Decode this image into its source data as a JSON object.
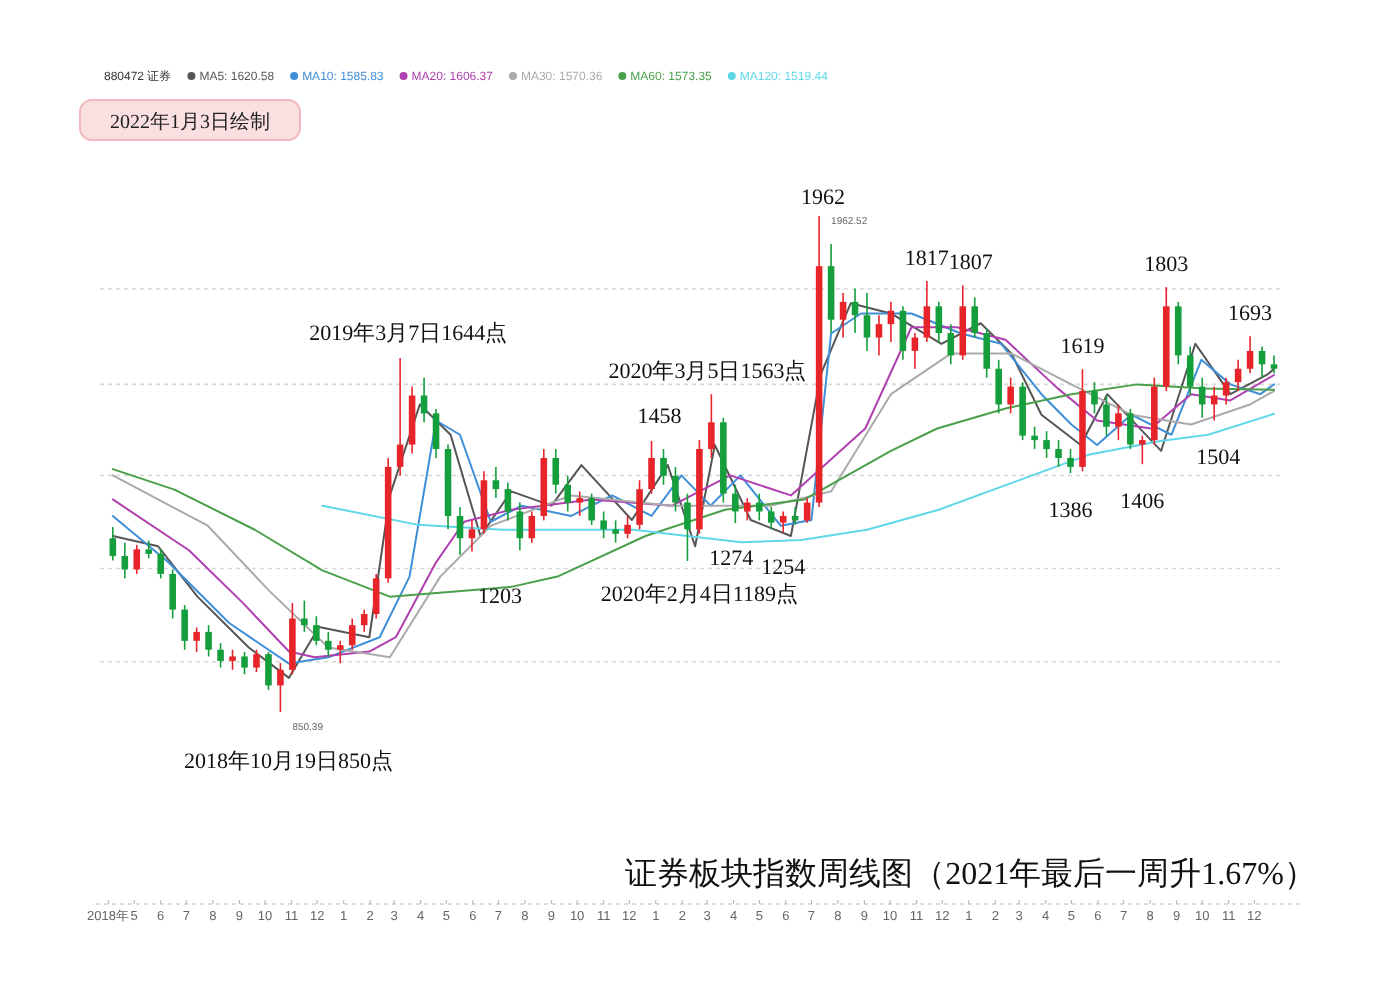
{
  "chart_data": {
    "type": "candlestick",
    "title": "证券板块指数周线图（2021年最后一周升1.67%）",
    "legend_title": "880472 证券",
    "legend": "top",
    "grid": "y",
    "xlim": [
      "2018-03-22",
      "2021-12-31"
    ],
    "tick_labels": "x",
    "yticks": [
      {
        "value": 963,
        "label": null
      },
      {
        "value": 1172,
        "label": null
      },
      {
        "value": 1381,
        "label": null
      },
      {
        "value": 1585,
        "label": null
      },
      {
        "value": 1799,
        "label": null
      }
    ],
    "xticks": [
      {
        "value": "2018-04-01",
        "label": "2018年"
      },
      {
        "value": "2018-05-01",
        "label": "5"
      },
      {
        "value": "2018-06-01",
        "label": "6"
      },
      {
        "value": "2018-07-01",
        "label": "7"
      },
      {
        "value": "2018-08-01",
        "label": "8"
      },
      {
        "value": "2018-09-01",
        "label": "9"
      },
      {
        "value": "2018-10-01",
        "label": "10"
      },
      {
        "value": "2018-11-01",
        "label": "11"
      },
      {
        "value": "2018-12-01",
        "label": "12"
      },
      {
        "value": "2019-01-01",
        "label": "1"
      },
      {
        "value": "2019-02-01",
        "label": "2"
      },
      {
        "value": "2019-03-01",
        "label": "3"
      },
      {
        "value": "2019-04-01",
        "label": "4"
      },
      {
        "value": "2019-05-01",
        "label": "5"
      },
      {
        "value": "2019-06-01",
        "label": "6"
      },
      {
        "value": "2019-07-01",
        "label": "7"
      },
      {
        "value": "2019-08-01",
        "label": "8"
      },
      {
        "value": "2019-09-01",
        "label": "9"
      },
      {
        "value": "2019-10-01",
        "label": "10"
      },
      {
        "value": "2019-11-01",
        "label": "11"
      },
      {
        "value": "2019-12-01",
        "label": "12"
      },
      {
        "value": "2020-01-01",
        "label": "1"
      },
      {
        "value": "2020-02-01",
        "label": "2"
      },
      {
        "value": "2020-03-01",
        "label": "3"
      },
      {
        "value": "2020-04-01",
        "label": "4"
      },
      {
        "value": "2020-05-01",
        "label": "5"
      },
      {
        "value": "2020-06-01",
        "label": "6"
      },
      {
        "value": "2020-07-01",
        "label": "7"
      },
      {
        "value": "2020-08-01",
        "label": "8"
      },
      {
        "value": "2020-09-01",
        "label": "9"
      },
      {
        "value": "2020-10-01",
        "label": "10"
      },
      {
        "value": "2020-11-01",
        "label": "11"
      },
      {
        "value": "2020-12-01",
        "label": "12"
      },
      {
        "value": "2021-01-01",
        "label": "1"
      },
      {
        "value": "2021-02-01",
        "label": "2"
      },
      {
        "value": "2021-03-01",
        "label": "3"
      },
      {
        "value": "2021-04-01",
        "label": "4"
      },
      {
        "value": "2021-05-01",
        "label": "5"
      },
      {
        "value": "2021-06-01",
        "label": "6"
      },
      {
        "value": "2021-07-01",
        "label": "7"
      },
      {
        "value": "2021-08-01",
        "label": "8"
      },
      {
        "value": "2021-09-01",
        "label": "9"
      },
      {
        "value": "2021-10-01",
        "label": "10"
      },
      {
        "value": "2021-11-01",
        "label": "11"
      },
      {
        "value": "2021-12-01",
        "label": "12"
      }
    ],
    "colors": [
      "#149e3c",
      "#149e3c",
      "#e8242b",
      "#149e3c",
      "#149e3c",
      "#149e3c",
      "#149e3c",
      "#e8242b",
      "#149e3c",
      "#149e3c",
      "#e8242b",
      "#149e3c",
      "#e8242b",
      "#149e3c",
      "#e8242b",
      "#e8242b",
      "#149e3c",
      "#149e3c",
      "#149e3c",
      "#e8242b",
      "#e8242b",
      "#e8242b",
      "#e8242b",
      "#e8242b",
      "#e8242b",
      "#e8242b",
      "#149e3c",
      "#149e3c",
      "#149e3c",
      "#149e3c",
      "#e8242b",
      "#e8242b",
      "#149e3c",
      "#149e3c",
      "#149e3c",
      "#e8242b",
      "#e8242b",
      "#149e3c",
      "#149e3c",
      "#e8242b",
      "#149e3c",
      "#149e3c",
      "#149e3c",
      "#e8242b",
      "#e8242b",
      "#e8242b",
      "#149e3c",
      "#149e3c",
      "#149e3c",
      "#e8242b",
      "#e8242b",
      "#149e3c",
      "#149e3c",
      "#e8242b",
      "#149e3c",
      "#149e3c",
      "#e8242b",
      "#149e3c",
      "#e8242b",
      "#e8242b",
      "#149e3c",
      "#e8242b",
      "#149e3c",
      "#149e3c",
      "#e8242b",
      "#e8242b",
      "#149e3c",
      "#e8242b",
      "#e8242b",
      "#149e3c",
      "#149e3c",
      "#e8242b",
      "#149e3c",
      "#149e3c",
      "#149e3c",
      "#e8242b",
      "#149e3c",
      "#149e3c",
      "#149e3c",
      "#149e3c",
      "#149e3c",
      "#e8242b",
      "#149e3c",
      "#149e3c",
      "#e8242b",
      "#149e3c",
      "#e8242b",
      "#e8242b",
      "#e8242b",
      "#149e3c",
      "#149e3c",
      "#149e3c",
      "#e8242b",
      "#e8242b",
      "#e8242b",
      "#e8242b",
      "#149e3c",
      "#149e3c"
    ],
    "x": [
      "2018-04-06",
      "2018-04-20",
      "2018-05-04",
      "2018-05-18",
      "2018-06-01",
      "2018-06-15",
      "2018-06-29",
      "2018-07-13",
      "2018-07-27",
      "2018-08-10",
      "2018-08-24",
      "2018-09-07",
      "2018-09-21",
      "2018-10-05",
      "2018-10-19",
      "2018-11-02",
      "2018-11-16",
      "2018-11-30",
      "2018-12-14",
      "2018-12-28",
      "2019-01-11",
      "2019-01-25",
      "2019-02-08",
      "2019-02-22",
      "2019-03-08",
      "2019-03-22",
      "2019-04-05",
      "2019-04-19",
      "2019-05-03",
      "2019-05-17",
      "2019-05-31",
      "2019-06-14",
      "2019-06-28",
      "2019-07-12",
      "2019-07-26",
      "2019-08-09",
      "2019-08-23",
      "2019-09-06",
      "2019-09-20",
      "2019-10-04",
      "2019-10-18",
      "2019-11-01",
      "2019-11-15",
      "2019-11-29",
      "2019-12-13",
      "2019-12-27",
      "2020-01-10",
      "2020-01-24",
      "2020-02-07",
      "2020-02-21",
      "2020-03-06",
      "2020-03-20",
      "2020-04-03",
      "2020-04-17",
      "2020-05-01",
      "2020-05-15",
      "2020-05-29",
      "2020-06-12",
      "2020-06-26",
      "2020-07-10",
      "2020-07-24",
      "2020-08-07",
      "2020-08-21",
      "2020-09-04",
      "2020-09-18",
      "2020-10-02",
      "2020-10-16",
      "2020-10-30",
      "2020-11-13",
      "2020-11-27",
      "2020-12-11",
      "2020-12-25",
      "2021-01-08",
      "2021-01-22",
      "2021-02-05",
      "2021-02-19",
      "2021-03-05",
      "2021-03-19",
      "2021-04-02",
      "2021-04-16",
      "2021-04-30",
      "2021-05-14",
      "2021-05-28",
      "2021-06-11",
      "2021-06-25",
      "2021-07-09",
      "2021-07-23",
      "2021-08-06",
      "2021-08-20",
      "2021-09-03",
      "2021-09-17",
      "2021-10-01",
      "2021-10-15",
      "2021-10-29",
      "2021-11-12",
      "2021-11-26",
      "2021-12-10",
      "2021-12-24"
    ],
    "ohlc": [
      [
        1240,
        1265,
        1190,
        1200
      ],
      [
        1200,
        1230,
        1150,
        1170
      ],
      [
        1170,
        1225,
        1160,
        1215
      ],
      [
        1215,
        1235,
        1195,
        1205
      ],
      [
        1205,
        1215,
        1150,
        1160
      ],
      [
        1160,
        1170,
        1060,
        1080
      ],
      [
        1080,
        1090,
        990,
        1010
      ],
      [
        1010,
        1040,
        985,
        1030
      ],
      [
        1030,
        1045,
        975,
        990
      ],
      [
        990,
        1005,
        950,
        965
      ],
      [
        965,
        990,
        945,
        975
      ],
      [
        975,
        985,
        935,
        950
      ],
      [
        950,
        990,
        940,
        980
      ],
      [
        980,
        985,
        900,
        910
      ],
      [
        910,
        960,
        850.39,
        945
      ],
      [
        945,
        1095,
        935,
        1060
      ],
      [
        1060,
        1100,
        1030,
        1045
      ],
      [
        1045,
        1065,
        1000,
        1010
      ],
      [
        1010,
        1030,
        975,
        990
      ],
      [
        990,
        1010,
        960,
        1000
      ],
      [
        1000,
        1060,
        990,
        1045
      ],
      [
        1045,
        1080,
        1030,
        1070
      ],
      [
        1070,
        1160,
        1060,
        1150
      ],
      [
        1150,
        1420,
        1140,
        1400
      ],
      [
        1400,
        1644,
        1380,
        1450
      ],
      [
        1450,
        1580,
        1430,
        1560
      ],
      [
        1560,
        1600,
        1500,
        1520
      ],
      [
        1520,
        1530,
        1420,
        1440
      ],
      [
        1440,
        1450,
        1260,
        1290
      ],
      [
        1290,
        1310,
        1203,
        1240
      ],
      [
        1240,
        1280,
        1210,
        1260
      ],
      [
        1260,
        1390,
        1250,
        1370
      ],
      [
        1370,
        1400,
        1330,
        1350
      ],
      [
        1350,
        1365,
        1280,
        1300
      ],
      [
        1300,
        1320,
        1213,
        1240
      ],
      [
        1240,
        1300,
        1230,
        1290
      ],
      [
        1290,
        1440,
        1280,
        1420
      ],
      [
        1420,
        1440,
        1340,
        1360
      ],
      [
        1360,
        1380,
        1300,
        1320
      ],
      [
        1320,
        1345,
        1290,
        1330
      ],
      [
        1330,
        1340,
        1270,
        1280
      ],
      [
        1280,
        1300,
        1240,
        1260
      ],
      [
        1260,
        1280,
        1230,
        1250
      ],
      [
        1250,
        1290,
        1240,
        1270
      ],
      [
        1270,
        1370,
        1260,
        1350
      ],
      [
        1350,
        1458,
        1340,
        1420
      ],
      [
        1420,
        1440,
        1360,
        1380
      ],
      [
        1380,
        1400,
        1300,
        1320
      ],
      [
        1320,
        1340,
        1189,
        1260
      ],
      [
        1260,
        1460,
        1250,
        1440
      ],
      [
        1440,
        1563,
        1420,
        1500
      ],
      [
        1500,
        1510,
        1320,
        1340
      ],
      [
        1340,
        1360,
        1274,
        1300
      ],
      [
        1300,
        1330,
        1280,
        1320
      ],
      [
        1320,
        1340,
        1280,
        1300
      ],
      [
        1300,
        1310,
        1260,
        1275
      ],
      [
        1275,
        1300,
        1254,
        1290
      ],
      [
        1290,
        1310,
        1270,
        1280
      ],
      [
        1280,
        1330,
        1275,
        1320
      ],
      [
        1320,
        1962.52,
        1310,
        1850
      ],
      [
        1850,
        1900,
        1700,
        1730
      ],
      [
        1730,
        1790,
        1690,
        1770
      ],
      [
        1770,
        1800,
        1700,
        1740
      ],
      [
        1740,
        1790,
        1660,
        1690
      ],
      [
        1690,
        1740,
        1650,
        1720
      ],
      [
        1720,
        1770,
        1680,
        1750
      ],
      [
        1750,
        1760,
        1640,
        1660
      ],
      [
        1660,
        1700,
        1620,
        1690
      ],
      [
        1690,
        1817,
        1680,
        1760
      ],
      [
        1760,
        1770,
        1680,
        1700
      ],
      [
        1700,
        1720,
        1630,
        1650
      ],
      [
        1650,
        1807,
        1640,
        1760
      ],
      [
        1760,
        1780,
        1690,
        1700
      ],
      [
        1700,
        1710,
        1600,
        1620
      ],
      [
        1620,
        1640,
        1520,
        1540
      ],
      [
        1540,
        1600,
        1520,
        1580
      ],
      [
        1580,
        1590,
        1460,
        1470
      ],
      [
        1470,
        1490,
        1440,
        1460
      ],
      [
        1460,
        1480,
        1420,
        1440
      ],
      [
        1440,
        1460,
        1400,
        1420
      ],
      [
        1420,
        1440,
        1386,
        1400
      ],
      [
        1400,
        1619,
        1390,
        1570
      ],
      [
        1570,
        1590,
        1520,
        1540
      ],
      [
        1540,
        1560,
        1470,
        1490
      ],
      [
        1490,
        1540,
        1460,
        1520
      ],
      [
        1520,
        1530,
        1440,
        1450
      ],
      [
        1450,
        1470,
        1406,
        1460
      ],
      [
        1460,
        1600,
        1450,
        1580
      ],
      [
        1580,
        1803,
        1570,
        1760
      ],
      [
        1760,
        1770,
        1630,
        1650
      ],
      [
        1650,
        1670,
        1560,
        1580
      ],
      [
        1580,
        1600,
        1510,
        1540
      ],
      [
        1540,
        1580,
        1504,
        1560
      ],
      [
        1560,
        1600,
        1540,
        1590
      ],
      [
        1590,
        1640,
        1570,
        1620
      ],
      [
        1620,
        1693,
        1610,
        1660
      ],
      [
        1660,
        1670,
        1600,
        1630
      ],
      [
        1630,
        1650,
        1610,
        1620
      ]
    ],
    "series": [
      {
        "name": "MA5: 1620.58",
        "type": "line",
        "color": "#555555",
        "x": [
          "2018-04-06",
          "2018-05-29",
          "2018-07-14",
          "2018-09-12",
          "2018-10-29",
          "2018-12-03",
          "2019-01-31",
          "2019-02-24",
          "2019-03-31",
          "2019-05-06",
          "2019-06-10",
          "2019-07-16",
          "2019-09-01",
          "2019-10-06",
          "2019-12-04",
          "2020-01-15",
          "2020-02-16",
          "2020-03-10",
          "2020-04-21",
          "2020-06-07",
          "2020-07-12",
          "2020-08-16",
          "2020-10-02",
          "2020-11-30",
          "2021-01-15",
          "2021-02-20",
          "2021-03-27",
          "2021-05-12",
          "2021-06-12",
          "2021-08-14",
          "2021-09-23",
          "2021-11-03",
          "2021-12-17",
          "2021-12-24"
        ],
        "values": [
          1245,
          1222,
          1109,
          995,
          927,
          1041,
          1018,
          1336,
          1540,
          1472,
          1245,
          1345,
          1313,
          1404,
          1281,
          1404,
          1222,
          1449,
          1281,
          1245,
          1608,
          1767,
          1744,
          1676,
          1722,
          1654,
          1517,
          1449,
          1563,
          1436,
          1676,
          1563,
          1608,
          1620
        ]
      },
      {
        "name": "MA10: 1585.83",
        "type": "line",
        "color": "#3f8fd8",
        "x": [
          "2018-04-06",
          "2018-06-10",
          "2018-08-20",
          "2018-10-29",
          "2018-12-14",
          "2019-02-12",
          "2019-03-19",
          "2019-04-19",
          "2019-05-17",
          "2019-06-22",
          "2019-07-28",
          "2019-09-24",
          "2019-11-11",
          "2019-12-27",
          "2020-01-31",
          "2020-03-05",
          "2020-04-09",
          "2020-05-26",
          "2020-07-01",
          "2020-07-24",
          "2020-08-28",
          "2020-10-26",
          "2020-12-23",
          "2021-02-08",
          "2021-03-27",
          "2021-05-01",
          "2021-05-31",
          "2021-07-10",
          "2021-08-26",
          "2021-09-30",
          "2021-11-03",
          "2021-12-08",
          "2021-12-24"
        ],
        "values": [
          1290,
          1186,
          1050,
          959,
          973,
          1018,
          1154,
          1504,
          1472,
          1277,
          1313,
          1290,
          1336,
          1290,
          1381,
          1313,
          1381,
          1268,
          1281,
          1699,
          1744,
          1744,
          1699,
          1676,
          1563,
          1495,
          1449,
          1517,
          1472,
          1640,
          1585,
          1563,
          1585
        ]
      },
      {
        "name": "MA20: 1606.37",
        "type": "line",
        "color": "#b040b0",
        "x": [
          "2018-04-06",
          "2018-07-04",
          "2018-09-05",
          "2018-10-29",
          "2018-11-28",
          "2019-01-31",
          "2019-03-03",
          "2019-04-19",
          "2019-05-22",
          "2019-07-16",
          "2019-10-18",
          "2020-01-20",
          "2020-03-28",
          "2020-06-07",
          "2020-09-02",
          "2020-10-26",
          "2020-12-18",
          "2021-02-13",
          "2021-04-15",
          "2021-05-31",
          "2021-08-02",
          "2021-09-18",
          "2021-11-03",
          "2021-12-24"
        ],
        "values": [
          1327,
          1213,
          1095,
          986,
          973,
          986,
          1018,
          1186,
          1277,
          1304,
          1327,
          1313,
          1381,
          1336,
          1486,
          1713,
          1713,
          1685,
          1576,
          1504,
          1486,
          1563,
          1549,
          1606
        ]
      },
      {
        "name": "MA30: 1570.36",
        "type": "line",
        "color": "#aaaaaa",
        "x": [
          "2018-04-06",
          "2018-07-26",
          "2018-10-06",
          "2018-12-14",
          "2019-02-24",
          "2019-04-24",
          "2019-06-22",
          "2019-09-24",
          "2020-01-20",
          "2020-05-14",
          "2020-07-24",
          "2020-10-02",
          "2020-12-11",
          "2021-02-20",
          "2021-05-01",
          "2021-07-10",
          "2021-09-18",
          "2021-11-26",
          "2021-12-24"
        ],
        "values": [
          1381,
          1268,
          1122,
          995,
          973,
          1154,
          1268,
          1336,
          1313,
          1313,
          1345,
          1563,
          1654,
          1654,
          1585,
          1517,
          1495,
          1540,
          1570
        ]
      },
      {
        "name": "MA60: 1573.35",
        "type": "line",
        "color": "#4aa04a",
        "x": [
          "2018-04-06",
          "2018-06-17",
          "2018-09-19",
          "2018-12-07",
          "2019-02-24",
          "2019-05-22",
          "2019-07-16",
          "2019-09-08",
          "2019-12-20",
          "2020-03-22",
          "2020-06-23",
          "2020-10-02",
          "2020-11-25",
          "2021-02-13",
          "2021-05-01",
          "2021-07-17",
          "2021-10-04",
          "2021-12-24"
        ],
        "values": [
          1395,
          1349,
          1259,
          1168,
          1109,
          1122,
          1131,
          1154,
          1245,
          1304,
          1327,
          1436,
          1486,
          1531,
          1563,
          1585,
          1576,
          1573
        ]
      },
      {
        "name": "MA120: 1519.44",
        "type": "line",
        "color": "#5ed8e8",
        "x": [
          "2018-12-07",
          "2019-03-29",
          "2019-07-05",
          "2019-12-06",
          "2020-04-10",
          "2020-06-19",
          "2020-09-04",
          "2020-11-27",
          "2021-02-26",
          "2021-05-21",
          "2021-08-13",
          "2021-10-08",
          "2021-12-24"
        ],
        "values": [
          1313,
          1270,
          1259,
          1259,
          1231,
          1236,
          1259,
          1304,
          1368,
          1427,
          1458,
          1472,
          1519
        ]
      }
    ],
    "annotations": [
      "2022年1月3日绘制",
      {
        "text": "2018年10月19日850点",
        "x": "2018-10-19",
        "y": 850.39
      },
      {
        "text": "850.39",
        "x": "2018-10-19",
        "y": 850.39
      },
      {
        "text": "2019年3月7日1644点",
        "x": "2019-03-08",
        "y": 1644
      },
      {
        "text": "1203",
        "x": "2019-05-17",
        "y": 1203
      },
      {
        "text": "1458",
        "x": "2019-12-27",
        "y": 1458
      },
      {
        "text": "2020年3月5日1563点",
        "x": "2020-03-06",
        "y": 1563
      },
      {
        "text": "2020年2月4日1189点",
        "x": "2020-02-07",
        "y": 1189
      },
      {
        "text": "1274",
        "x": "2020-04-03",
        "y": 1274
      },
      {
        "text": "1254",
        "x": "2020-05-29",
        "y": 1254
      },
      {
        "text": "1962",
        "x": "2020-07-10",
        "y": 1962.52
      },
      {
        "text": "1962.52",
        "x": "2020-07-10",
        "y": 1962.52
      },
      {
        "text": "1817",
        "x": "2020-11-13",
        "y": 1817
      },
      {
        "text": "1807",
        "x": "2020-12-25",
        "y": 1807
      },
      {
        "text": "1386",
        "x": "2021-04-30",
        "y": 1386
      },
      {
        "text": "1619",
        "x": "2021-05-14",
        "y": 1619
      },
      {
        "text": "1406",
        "x": "2021-07-23",
        "y": 1406
      },
      {
        "text": "1803",
        "x": "2021-08-20",
        "y": 1803
      },
      {
        "text": "1504",
        "x": "2021-10-15",
        "y": 1504
      },
      {
        "text": "1693",
        "x": "2021-11-26",
        "y": 1693
      }
    ]
  }
}
